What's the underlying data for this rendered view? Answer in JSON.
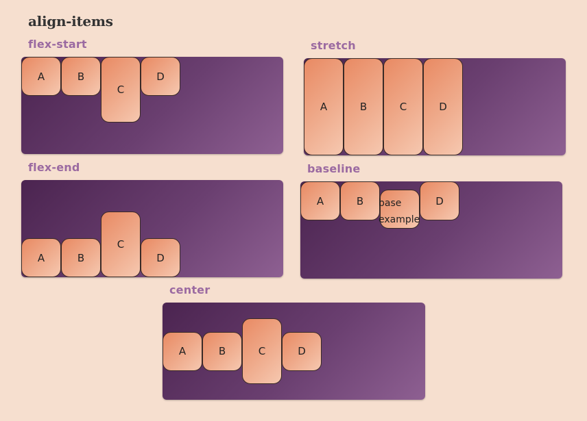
{
  "page": {
    "title": "align-items"
  },
  "sections": {
    "flex_start": {
      "label": "flex-start",
      "items": [
        "A",
        "B",
        "C",
        "D"
      ]
    },
    "stretch": {
      "label": "stretch",
      "items": [
        "A",
        "B",
        "C",
        "D"
      ]
    },
    "flex_end": {
      "label": "flex-end",
      "items": [
        "A",
        "B",
        "C",
        "D"
      ]
    },
    "baseline": {
      "label": "baseline",
      "items": [
        "A",
        "B",
        "base example",
        "D"
      ],
      "base_lines": [
        "base",
        "example"
      ]
    },
    "center": {
      "label": "center",
      "items": [
        "A",
        "B",
        "C",
        "D"
      ]
    }
  },
  "colors": {
    "background": "#f6dfcf",
    "panel_dark": "#4b2450",
    "panel_light": "#8e6092",
    "box_orange": "#e98a63",
    "box_light": "#f6c8b0",
    "label": "#9b6aa1",
    "title": "#333333"
  }
}
